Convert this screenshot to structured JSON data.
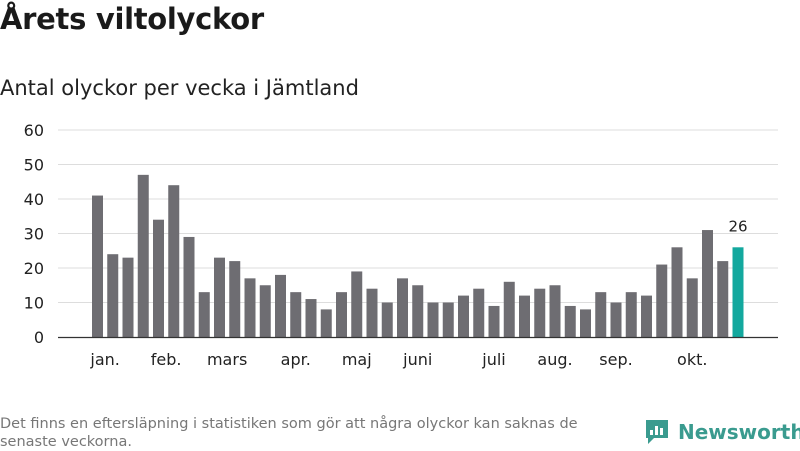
{
  "title": "Årets viltolyckor",
  "subtitle": "Antal olyckor per vecka i Jämtland",
  "footnote": "Det finns en eftersläpning i statistiken som gör att några olyckor kan saknas de senaste veckorna.",
  "brand": {
    "name": "Newsworthy",
    "icon": "newsworthy-logo-icon"
  },
  "colors": {
    "bar": "#6e6d72",
    "highlight": "#13a89e",
    "grid": "#dddddd",
    "axis": "#333333",
    "brand": "#3a9b8f"
  },
  "chart_data": {
    "type": "bar",
    "title": "Antal olyckor per vecka i Jämtland",
    "xlabel": "",
    "ylabel": "",
    "ylim": [
      0,
      60
    ],
    "yticks": [
      0,
      10,
      20,
      30,
      40,
      50,
      60
    ],
    "grid": true,
    "weeks": [
      1,
      2,
      3,
      4,
      5,
      6,
      7,
      8,
      9,
      10,
      11,
      12,
      13,
      14,
      15,
      16,
      17,
      18,
      19,
      20,
      21,
      22,
      23,
      24,
      25,
      26,
      27,
      28,
      29,
      30,
      31,
      32,
      33,
      34,
      35,
      36,
      37,
      38,
      39,
      40,
      41,
      42,
      43
    ],
    "values": [
      41,
      24,
      23,
      47,
      34,
      44,
      29,
      13,
      23,
      22,
      17,
      15,
      18,
      13,
      11,
      8,
      13,
      19,
      14,
      10,
      17,
      15,
      10,
      10,
      12,
      14,
      9,
      16,
      12,
      14,
      15,
      9,
      8,
      13,
      10,
      13,
      12,
      21,
      26,
      17,
      31,
      22,
      26
    ],
    "highlight_index": 42,
    "highlight_label": "26",
    "month_labels": [
      {
        "label": "jan.",
        "week": 1.5
      },
      {
        "label": "feb.",
        "week": 5.5
      },
      {
        "label": "mars",
        "week": 9.5
      },
      {
        "label": "apr.",
        "week": 14
      },
      {
        "label": "maj",
        "week": 18
      },
      {
        "label": "juni",
        "week": 22
      },
      {
        "label": "juli",
        "week": 27
      },
      {
        "label": "aug.",
        "week": 31
      },
      {
        "label": "sep.",
        "week": 35
      },
      {
        "label": "okt.",
        "week": 40
      }
    ]
  }
}
